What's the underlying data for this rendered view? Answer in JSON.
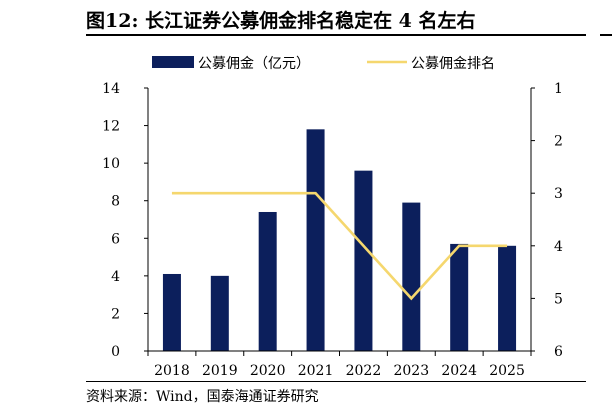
{
  "title": "图12:  长江证券公募佣金排名稳定在 4 名左右",
  "source": "资料来源：Wind，国泰海通证券研究",
  "colors": {
    "bar": "#0c1f5c",
    "line": "#f5d76e"
  },
  "chart_data": {
    "type": "bar",
    "categories": [
      "2018",
      "2019",
      "2020",
      "2021",
      "2022",
      "2023",
      "2024",
      "2025"
    ],
    "series": [
      {
        "name": "公募佣金（亿元）",
        "type": "bar",
        "axis": "left",
        "values": [
          4.1,
          4.0,
          7.4,
          11.8,
          9.6,
          7.9,
          5.7,
          5.6
        ]
      },
      {
        "name": "公募佣金排名",
        "type": "line",
        "axis": "right",
        "values": [
          3,
          3,
          3,
          3,
          4,
          5,
          4,
          4
        ]
      }
    ],
    "ylim": [
      0,
      14
    ],
    "yticks": [
      "0",
      "2",
      "4",
      "6",
      "8",
      "10",
      "12",
      "14"
    ],
    "y2lim": [
      1,
      6
    ],
    "y2_inverted": true,
    "y2ticks": [
      "1",
      "2",
      "3",
      "4",
      "5",
      "6"
    ],
    "legend_position": "top"
  }
}
